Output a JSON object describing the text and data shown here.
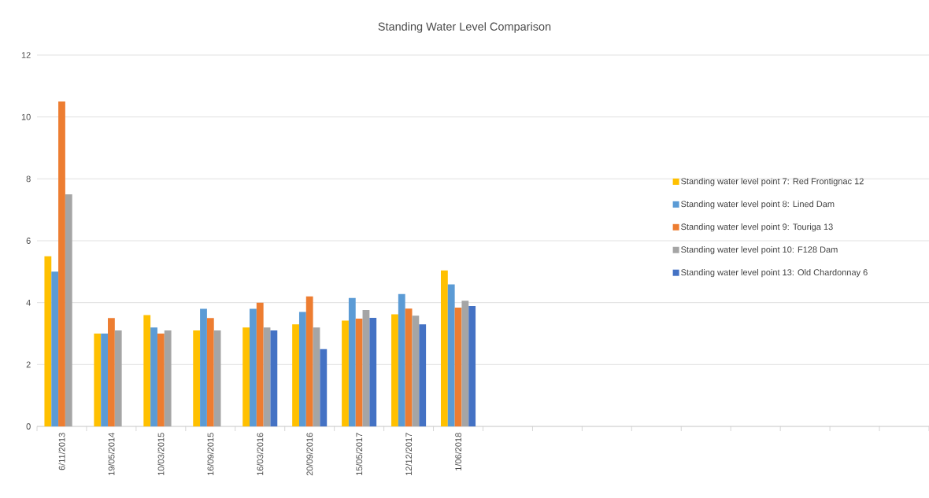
{
  "chart_data": {
    "type": "bar",
    "title": "Standing Water Level Comparison",
    "categories": [
      "6/11/2013",
      "19/05/2014",
      "10/03/2015",
      "16/09/2015",
      "16/03/2016",
      "20/09/2016",
      "15/05/2017",
      "12/12/2017",
      "1/06/2018",
      null,
      null,
      null,
      null,
      null,
      null,
      null,
      null,
      null
    ],
    "series": [
      {
        "name": "Standing water level point 7: Red Frontignac 12",
        "color": "#ffc000",
        "values": [
          5.5,
          3.0,
          3.6,
          3.1,
          3.2,
          3.3,
          3.42,
          3.62,
          5.04,
          null,
          null,
          null,
          null,
          null,
          null,
          null,
          null,
          null
        ]
      },
      {
        "name": "Standing water level point 8: Lined Dam",
        "color": "#5b9bd5",
        "values": [
          5.0,
          3.0,
          3.2,
          3.8,
          3.8,
          3.7,
          4.15,
          4.28,
          4.59,
          null,
          null,
          null,
          null,
          null,
          null,
          null,
          null,
          null
        ]
      },
      {
        "name": "Standing water level point 9: Touriga 13",
        "color": "#ed7d31",
        "values": [
          10.5,
          3.5,
          3.0,
          3.5,
          4.0,
          4.2,
          3.48,
          3.81,
          3.84,
          null,
          null,
          null,
          null,
          null,
          null,
          null,
          null,
          null
        ]
      },
      {
        "name": "Standing water level point 10: F128 Dam",
        "color": "#a5a5a5",
        "values": [
          7.5,
          3.1,
          3.1,
          3.1,
          3.2,
          3.2,
          3.76,
          3.58,
          4.06,
          null,
          null,
          null,
          null,
          null,
          null,
          null,
          null,
          null
        ]
      },
      {
        "name": "Standing water level point 13: Old Chardonnay 6",
        "color": "#4472c4",
        "values": [
          null,
          null,
          null,
          null,
          3.1,
          2.5,
          3.51,
          3.3,
          3.89,
          null,
          null,
          null,
          null,
          null,
          null,
          null,
          null,
          null
        ]
      }
    ],
    "ylim": [
      0,
      12
    ],
    "yticks": [
      0,
      2,
      4,
      6,
      8,
      10,
      12
    ],
    "grid": "y",
    "legend": "right"
  }
}
